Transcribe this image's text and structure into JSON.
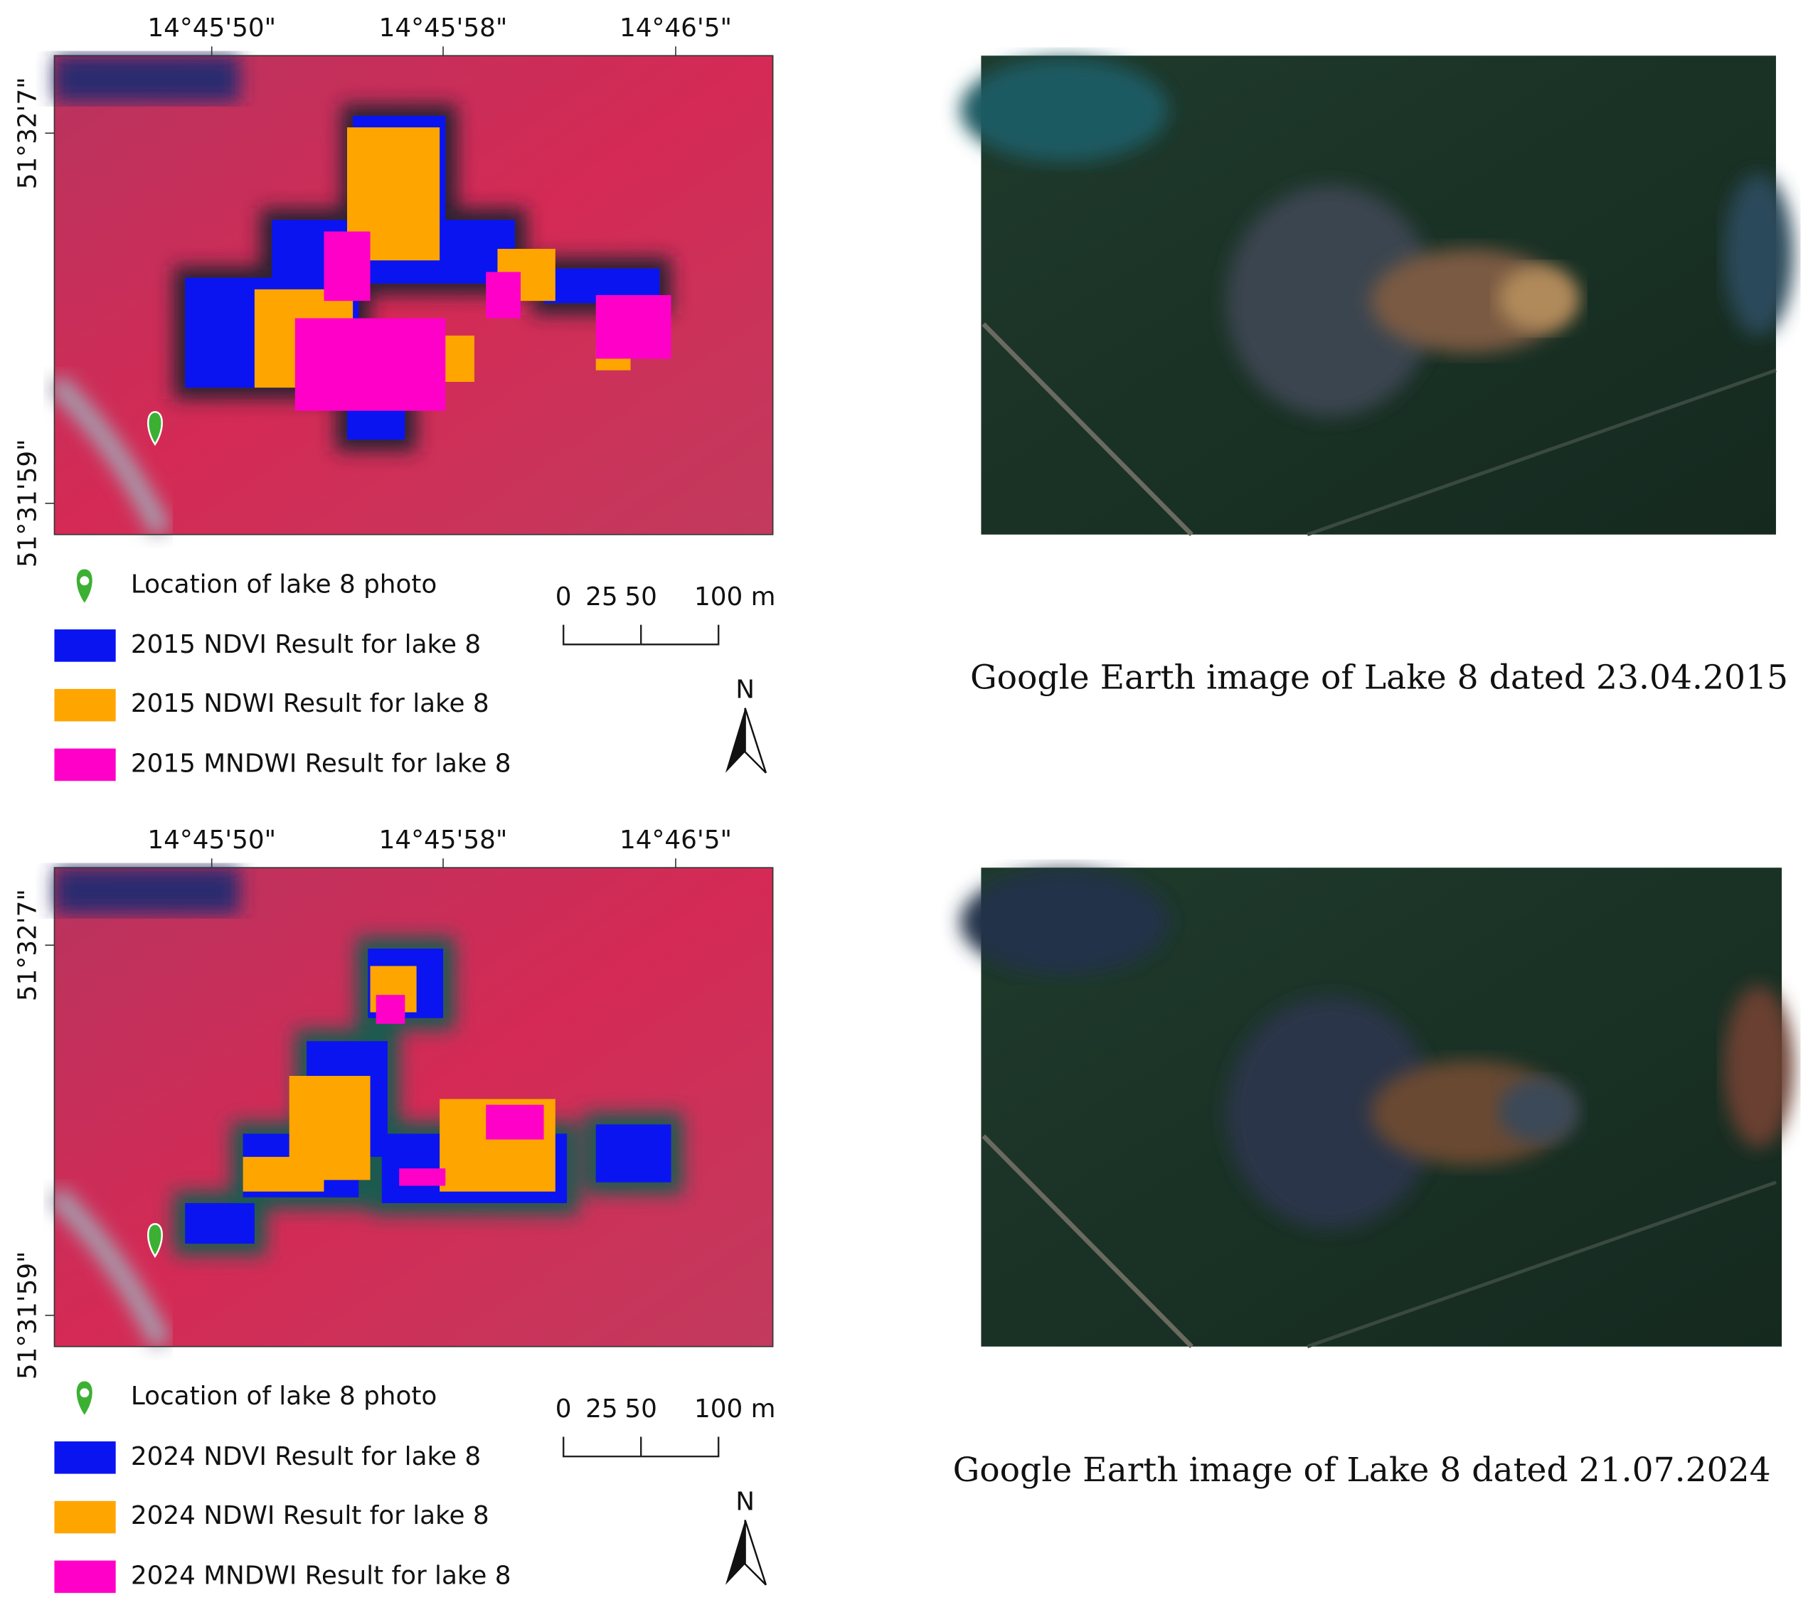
{
  "panels": [
    {
      "x_labels": [
        "14°45'50\"",
        "14°45'58\"",
        "14°46'5\""
      ],
      "y_labels": [
        "51°32'7\"",
        "51°31'59\""
      ],
      "legend": [
        "Location of lake 8 photo",
        "2015 NDVI Result for lake 8",
        "2015 NDWI Result for lake 8",
        "2015 MNDWI Result for lake 8"
      ],
      "scale_labels": [
        "0",
        "25",
        "50",
        "100 m"
      ],
      "north": "N",
      "caption": "Google Earth image of Lake 8 dated 23.04.2015"
    },
    {
      "x_labels": [
        "14°45'50\"",
        "14°45'58\"",
        "14°46'5\""
      ],
      "y_labels": [
        "51°32'7\"",
        "51°31'59\""
      ],
      "legend": [
        "Location of lake 8 photo",
        "2024 NDVI Result for lake 8",
        "2024 NDWI Result for lake 8",
        "2024 MNDWI Result for lake 8"
      ],
      "scale_labels": [
        "0",
        "25",
        "50",
        "100 m"
      ],
      "north": "N",
      "caption": "Google Earth image of Lake 8 dated 21.07.2024"
    }
  ]
}
